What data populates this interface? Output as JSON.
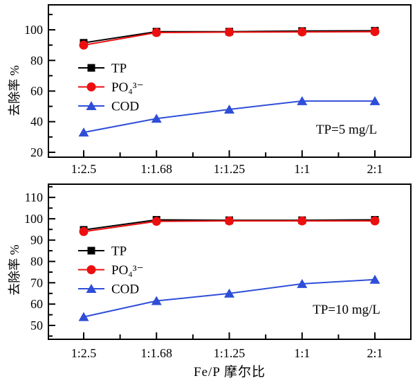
{
  "figure": {
    "background": "#ffffff",
    "axis_color": "#000000"
  },
  "chart_data": [
    {
      "type": "line",
      "title": "",
      "xlabel": "",
      "ylabel": "去除率 %",
      "annotation": "TP=5 mg/L",
      "categories": [
        "1:2.5",
        "1:1.68",
        "1:1.25",
        "1:1",
        "2:1"
      ],
      "ylim": [
        16.8,
        116.3
      ],
      "yticks": [
        20,
        40,
        60,
        80,
        100
      ],
      "yminorticks": [
        30,
        50,
        70,
        90,
        110
      ],
      "grid": false,
      "legend_position": "upper-left-inside",
      "series": [
        {
          "name": "TP",
          "marker": "square",
          "color": "#000000",
          "values": [
            91.5,
            98.8,
            98.8,
            99.2,
            99.4
          ]
        },
        {
          "name": "PO₄³⁻",
          "marker": "circle",
          "color": "#ec0f0f",
          "values": [
            90.0,
            98.2,
            98.5,
            98.6,
            98.8
          ]
        },
        {
          "name": "COD",
          "marker": "triangle",
          "color": "#2e4ed8",
          "values": [
            33.0,
            42.0,
            48.0,
            53.5,
            53.5
          ]
        }
      ]
    },
    {
      "type": "line",
      "title": "",
      "xlabel": "Fe/P 摩尔比",
      "ylabel": "去除率 %",
      "annotation": "TP=10 mg/L",
      "categories": [
        "1:2.5",
        "1:1.68",
        "1:1.25",
        "1:1",
        "2:1"
      ],
      "ylim": [
        43.5,
        116.2
      ],
      "yticks": [
        50,
        60,
        70,
        80,
        90,
        100,
        110
      ],
      "yminorticks": [
        45,
        55,
        65,
        75,
        85,
        95,
        105,
        115
      ],
      "grid": false,
      "legend_position": "middle-left-inside",
      "series": [
        {
          "name": "TP",
          "marker": "square",
          "color": "#000000",
          "values": [
            94.8,
            99.5,
            99.3,
            99.3,
            99.5
          ]
        },
        {
          "name": "PO₄³⁻",
          "marker": "circle",
          "color": "#ec0f0f",
          "values": [
            94.0,
            98.8,
            99.0,
            99.0,
            99.0
          ]
        },
        {
          "name": "COD",
          "marker": "triangle",
          "color": "#2e4ed8",
          "values": [
            54.0,
            61.5,
            65.0,
            69.5,
            71.5
          ]
        }
      ]
    }
  ]
}
